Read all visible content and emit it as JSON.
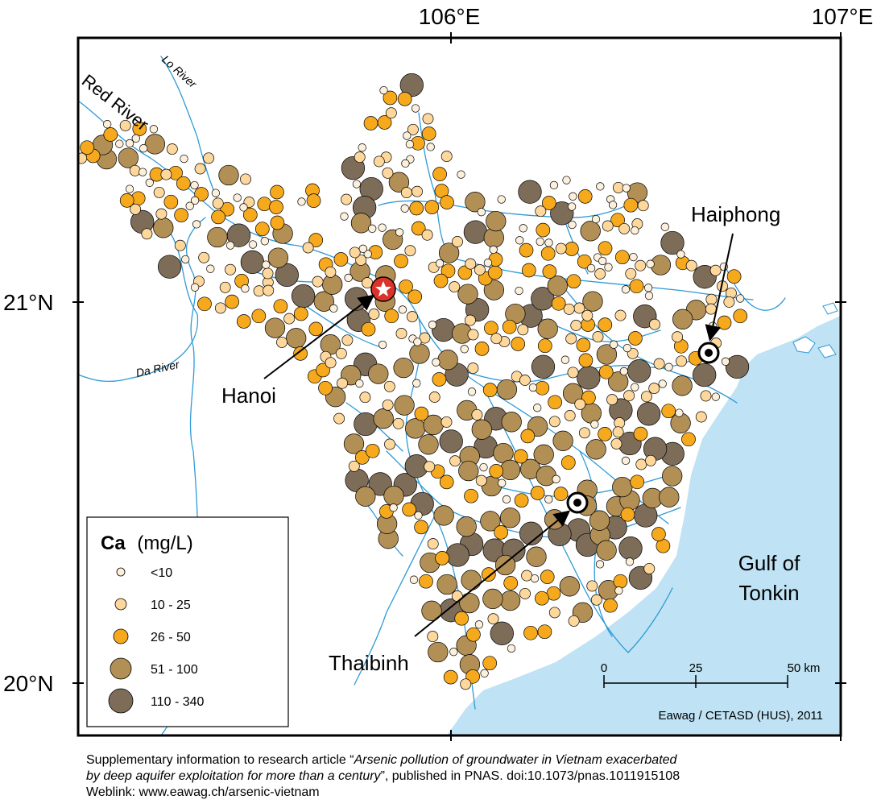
{
  "axes": {
    "lon_ticks": [
      "106°E",
      "107°E"
    ],
    "lat_ticks": [
      "21°N",
      "20°N"
    ]
  },
  "rivers": {
    "red": "Red River",
    "lo": "Lo River",
    "da": "Da River"
  },
  "places": {
    "hanoi": "Hanoi",
    "haiphong": "Haiphong",
    "thaibinh": "Thaibinh",
    "gulf_line1": "Gulf of",
    "gulf_line2": "Tonkin"
  },
  "legend": {
    "title_bold": "Ca",
    "title_unit": "(mg/L)",
    "classes": [
      {
        "label": "<10",
        "color": "#fcf0dc"
      },
      {
        "label": "10 - 25",
        "color": "#fdd79b"
      },
      {
        "label": "26 - 50",
        "color": "#f6a91c"
      },
      {
        "label": "51 - 100",
        "color": "#b28f55"
      },
      {
        "label": "110 - 340",
        "color": "#7d6c58"
      }
    ]
  },
  "scale_bar": {
    "ticks": [
      "0",
      "25",
      "50 km"
    ]
  },
  "credit": "Eawag / CETASD (HUS), 2011",
  "caption": {
    "line1_prefix": "Supplementary information to research article “",
    "title_part1": "Arsenic pollution of groundwater in Vietnam exacerbated",
    "title_part2": "by deep aquifer exploitation for more than a century",
    "line2_suffix": "”, published in PNAS. doi:10.1073/pnas.1011915108",
    "weblink": "Weblink: www.eawag.ch/arsenic-vietnam"
  },
  "colors": {
    "sea": "#bfe2f4",
    "river": "#2e9ad6",
    "hanoi_marker": "#d9342b",
    "frame": "#000000"
  }
}
